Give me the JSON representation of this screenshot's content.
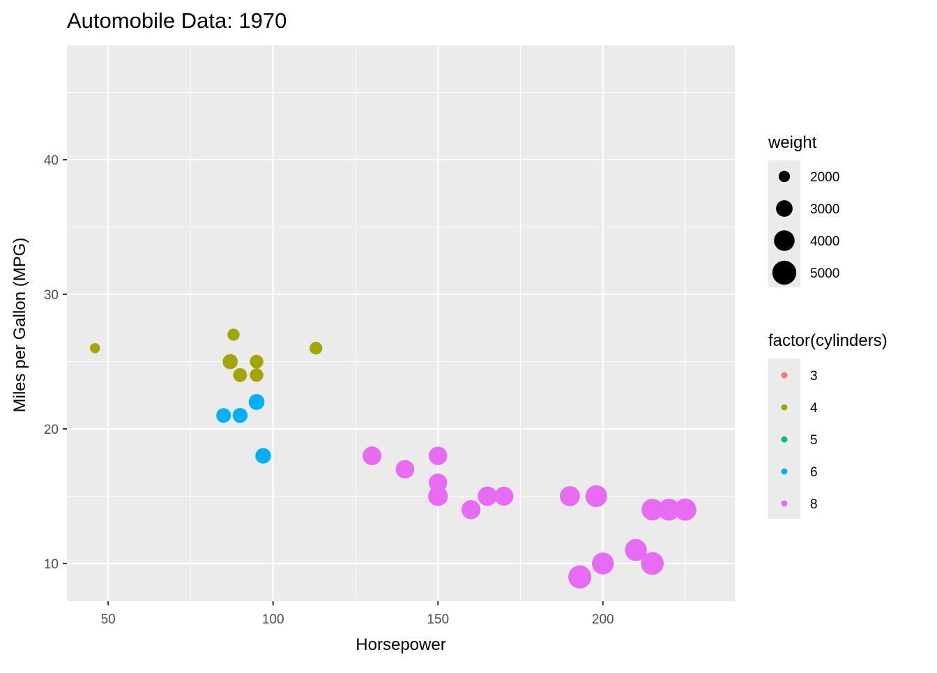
{
  "chart_data": {
    "type": "scatter",
    "title": "Automobile Data: 1970",
    "xlabel": "Horsepower",
    "ylabel": "Miles per Gallon (MPG)",
    "xlim": [
      37.5,
      240
    ],
    "ylim": [
      7.2,
      48.5
    ],
    "x_ticks": [
      50,
      100,
      150,
      200
    ],
    "y_ticks": [
      10,
      20,
      30,
      40
    ],
    "x_tick_labels": [
      "50",
      "100",
      "150",
      "200"
    ],
    "y_tick_labels": [
      "10",
      "20",
      "30",
      "40"
    ],
    "grid": true,
    "panel_background": "#ebebeb",
    "grid_color": "#ffffff",
    "legend_position": "right",
    "size_legend": {
      "title": "weight",
      "breaks": [
        2000,
        3000,
        4000,
        5000
      ],
      "labels": [
        "2000",
        "3000",
        "4000",
        "5000"
      ],
      "color": "#000000"
    },
    "color_legend": {
      "title": "factor(cylinders)",
      "breaks": [
        "3",
        "4",
        "5",
        "6",
        "8"
      ],
      "colors": [
        "#F8766D",
        "#A3A500",
        "#00BF7D",
        "#00B0F6",
        "#E76BF3"
      ]
    },
    "points": [
      {
        "hp": 46,
        "mpg": 26,
        "weight": 1835,
        "cylinders": "4"
      },
      {
        "hp": 87,
        "mpg": 25,
        "weight": 2672,
        "cylinders": "4"
      },
      {
        "hp": 88,
        "mpg": 27,
        "weight": 2130,
        "cylinders": "4"
      },
      {
        "hp": 90,
        "mpg": 24,
        "weight": 2430,
        "cylinders": "4"
      },
      {
        "hp": 95,
        "mpg": 25,
        "weight": 2375,
        "cylinders": "4"
      },
      {
        "hp": 95,
        "mpg": 24,
        "weight": 2372,
        "cylinders": "4"
      },
      {
        "hp": 113,
        "mpg": 26,
        "weight": 2234,
        "cylinders": "4"
      },
      {
        "hp": 85,
        "mpg": 21,
        "weight": 2587,
        "cylinders": "6"
      },
      {
        "hp": 90,
        "mpg": 21,
        "weight": 2648,
        "cylinders": "6"
      },
      {
        "hp": 95,
        "mpg": 22,
        "weight": 2833,
        "cylinders": "6"
      },
      {
        "hp": 97,
        "mpg": 18,
        "weight": 2774,
        "cylinders": "6"
      },
      {
        "hp": 130,
        "mpg": 18,
        "weight": 3504,
        "cylinders": "8"
      },
      {
        "hp": 140,
        "mpg": 17,
        "weight": 3449,
        "cylinders": "8"
      },
      {
        "hp": 150,
        "mpg": 18,
        "weight": 3436,
        "cylinders": "8"
      },
      {
        "hp": 150,
        "mpg": 16,
        "weight": 3433,
        "cylinders": "8"
      },
      {
        "hp": 150,
        "mpg": 15,
        "weight": 3761,
        "cylinders": "8"
      },
      {
        "hp": 160,
        "mpg": 14,
        "weight": 3609,
        "cylinders": "8"
      },
      {
        "hp": 165,
        "mpg": 15,
        "weight": 3693,
        "cylinders": "8"
      },
      {
        "hp": 170,
        "mpg": 15,
        "weight": 3563,
        "cylinders": "8"
      },
      {
        "hp": 190,
        "mpg": 15,
        "weight": 3850,
        "cylinders": "8"
      },
      {
        "hp": 198,
        "mpg": 15,
        "weight": 4341,
        "cylinders": "8"
      },
      {
        "hp": 193,
        "mpg": 9,
        "weight": 4732,
        "cylinders": "8"
      },
      {
        "hp": 200,
        "mpg": 10,
        "weight": 4376,
        "cylinders": "8"
      },
      {
        "hp": 210,
        "mpg": 11,
        "weight": 4382,
        "cylinders": "8"
      },
      {
        "hp": 215,
        "mpg": 10,
        "weight": 4615,
        "cylinders": "8"
      },
      {
        "hp": 215,
        "mpg": 14,
        "weight": 4312,
        "cylinders": "8"
      },
      {
        "hp": 220,
        "mpg": 14,
        "weight": 4354,
        "cylinders": "8"
      },
      {
        "hp": 225,
        "mpg": 14,
        "weight": 4425,
        "cylinders": "8"
      }
    ]
  }
}
